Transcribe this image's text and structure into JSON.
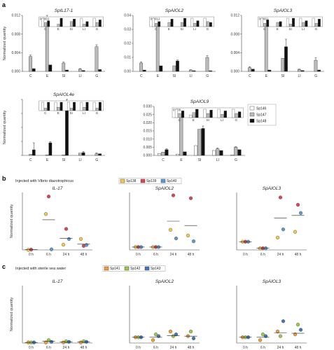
{
  "panel_labels": {
    "a": "a",
    "b": "b",
    "c": "c"
  },
  "legend_a": [
    {
      "name": "Sp146",
      "color": "#ffffff"
    },
    {
      "name": "Sp147",
      "color": "#bbbbbb"
    },
    {
      "name": "Sp148",
      "color": "#111111"
    }
  ],
  "header_b": "Injected with Vibrio diazotrophicus",
  "header_c": "Injected with sterile sea water",
  "legend_b": [
    {
      "name": "Sp138",
      "color": "#f2c94c"
    },
    {
      "name": "Sp139",
      "color": "#e0464f"
    },
    {
      "name": "Sp140",
      "color": "#5b9bd5"
    }
  ],
  "legend_c": [
    {
      "name": "Sp141",
      "color": "#f39c34"
    },
    {
      "name": "Sp142",
      "color": "#9cc84b"
    },
    {
      "name": "Sp143",
      "color": "#3e78c4"
    }
  ],
  "chart_data": [
    {
      "type": "bar",
      "title": "SpIL17-1",
      "ylabel": "Normalized quantity",
      "categories": [
        "C",
        "E",
        "SI",
        "LI",
        "G"
      ],
      "ylim": [
        0,
        0.012
      ],
      "yticks": [
        "0.000",
        "0.004",
        "0.008",
        "0.012"
      ],
      "series": [
        {
          "name": "Sp146",
          "values": [
            0,
            0,
            0,
            0,
            0
          ]
        },
        {
          "name": "Sp147",
          "values": [
            0.0032,
            0.0114,
            0.0018,
            0.0005,
            0.0053
          ]
        },
        {
          "name": "Sp148",
          "values": [
            0.0006,
            0.0014,
            0.0003,
            0.0002,
            0.0004
          ]
        }
      ],
      "errors": [
        0.0003,
        0.0006,
        0.0002,
        0.0001,
        0.0004
      ],
      "inset": {
        "ymax_label": "0.0001",
        "series": [
          [
            1,
            0,
            0,
            1,
            1
          ],
          [
            0.5,
            0.3,
            0.6,
            0.3,
            0.5
          ],
          [
            0.7,
            1,
            0.9,
            0.6,
            0.8
          ]
        ]
      }
    },
    {
      "type": "bar",
      "title": "SpAIOL2",
      "ylabel": "",
      "categories": [
        "C",
        "E",
        "SI",
        "LI",
        "G"
      ],
      "ylim": [
        0,
        0.04
      ],
      "yticks": [
        "0.00",
        "0.01",
        "0.02",
        "0.03",
        "0.04"
      ],
      "series": [
        {
          "name": "Sp146",
          "values": [
            0,
            0,
            0,
            0,
            0
          ]
        },
        {
          "name": "Sp147",
          "values": [
            0.006,
            0.033,
            0.004,
            0.001,
            0.01
          ]
        },
        {
          "name": "Sp148",
          "values": [
            0.001,
            0.004,
            0.0075,
            0.0005,
            0.0005
          ]
        }
      ],
      "errors": [
        0.0008,
        0.002,
        0.0006,
        0.0002,
        0.0012
      ],
      "inset": {
        "ymax_label": "0.0012",
        "series": [
          [
            1,
            0,
            0,
            1,
            1
          ],
          [
            0.4,
            0.5,
            0.5,
            0.4,
            0.6
          ],
          [
            0.6,
            0.9,
            1,
            0.7,
            0.5
          ]
        ]
      }
    },
    {
      "type": "bar",
      "title": "SpAIOL3",
      "ylabel": "",
      "categories": [
        "C",
        "E",
        "SI",
        "LI",
        "G"
      ],
      "ylim": [
        0,
        0.012
      ],
      "yticks": [
        "0.000",
        "0.004",
        "0.008",
        "0.012"
      ],
      "series": [
        {
          "name": "Sp146",
          "values": [
            0,
            0,
            0,
            0,
            0
          ]
        },
        {
          "name": "Sp147",
          "values": [
            0.0008,
            0.011,
            0.0028,
            0.0004,
            0.0024
          ]
        },
        {
          "name": "Sp148",
          "values": [
            0.0005,
            0.0003,
            0.0053,
            0.0002,
            0.0003
          ]
        }
      ],
      "errors": [
        0.0002,
        0.0006,
        0.0016,
        0.0001,
        0.0005
      ],
      "inset": {
        "ymax_label": "0.0001",
        "series": [
          [
            1,
            0,
            1,
            1,
            1
          ],
          [
            0.4,
            0.5,
            0.3,
            0.5,
            0.4
          ],
          [
            0.8,
            0.6,
            1,
            0.7,
            0.9
          ]
        ]
      }
    },
    {
      "type": "bar",
      "title": "SpAIOL4e",
      "ylabel": "Normalized quantity",
      "categories": [
        "C",
        "E",
        "SI",
        "LI",
        "G"
      ],
      "ylim": [
        0,
        0.2
      ],
      "yticks": [
        "",
        "",
        "",
        "",
        ""
      ],
      "series": [
        {
          "name": "Sp146",
          "values": [
            0,
            0,
            0,
            0,
            0
          ]
        },
        {
          "name": "Sp147",
          "values": [
            0.004,
            0.002,
            0.002,
            0.008,
            0.006
          ]
        },
        {
          "name": "Sp148",
          "values": [
            0.02,
            0.045,
            0.18,
            0.01,
            0.006
          ]
        }
      ],
      "errors": [
        0.025,
        0.004,
        0.02,
        0.004,
        0.003
      ],
      "inset": {
        "ymax_label": "",
        "series": [
          [
            1,
            1,
            1,
            1,
            1
          ],
          [
            0.3,
            0.4,
            0.3,
            0.4,
            0.3
          ],
          [
            1,
            1,
            1,
            1,
            1
          ]
        ]
      }
    },
    {
      "type": "bar",
      "title": "SpAIOL9",
      "ylabel": "",
      "categories": [
        "C",
        "E",
        "SI",
        "LI",
        "G"
      ],
      "ylim": [
        0,
        0.03
      ],
      "yticks": [
        "0.000",
        "0.005",
        "0.010",
        "0.015",
        "0.020",
        "0.025",
        "0.030"
      ],
      "series": [
        {
          "name": "Sp146",
          "values": [
            0.0012,
            0.0008,
            0.006,
            0.003,
            0.0003
          ]
        },
        {
          "name": "Sp147",
          "values": [
            0.002,
            0.026,
            0.016,
            0.004,
            0.005
          ]
        },
        {
          "name": "Sp148",
          "values": [
            0.0035,
            0.0022,
            0.0165,
            0.003,
            0.0035
          ]
        }
      ],
      "errors": [
        0.0006,
        0.002,
        0.0015,
        0.0006,
        0.0004
      ],
      "inset": {
        "ymax_label": "0.005",
        "series": [
          [
            1,
            0.3,
            1,
            1,
            1
          ],
          [
            0.5,
            0.6,
            0.5,
            0.4,
            0.5
          ],
          [
            0.8,
            1,
            0.9,
            0.8,
            0.7
          ]
        ]
      }
    },
    {
      "type": "scatter",
      "title": "IL-17",
      "ylabel": "Normalized quantity",
      "categories": [
        "0 h",
        "6 h",
        "24 h",
        "48 h"
      ],
      "ymax": 200,
      "points": [
        [
          [
            0,
            1
          ],
          [
            0,
            1
          ],
          [
            0,
            1
          ]
        ],
        [
          [
            125,
            186,
            2
          ],
          [
            2,
            1,
            1
          ],
          [
            2,
            1,
            1
          ]
        ],
        [
          [
            18,
            73,
            38
          ],
          [
            1,
            2,
            1
          ],
          [
            2,
            1,
            1
          ]
        ],
        [
          [
            38,
            14,
            17
          ],
          [
            1,
            2,
            1
          ],
          [
            2,
            1,
            1
          ]
        ]
      ],
      "means": [
        1,
        105,
        40,
        20
      ]
    },
    {
      "type": "scatter",
      "title": "SpAIOL2",
      "ylabel": "",
      "categories": [
        "0 h",
        "6 h",
        "24 h",
        "48 h"
      ],
      "ymax": 20,
      "points": [
        [
          [
            1,
            1,
            1
          ]
        ],
        [
          [
            1,
            1,
            1
          ]
        ],
        [
          [
            7,
            19,
            4
          ]
        ],
        [
          [
            5,
            18,
            3
          ]
        ]
      ],
      "means": [
        1,
        1,
        10,
        8.5
      ]
    },
    {
      "type": "scatter",
      "title": "SpAIOL3",
      "ylabel": "",
      "categories": [
        "0 h",
        "6 h",
        "24 h",
        "48 h"
      ],
      "ymax": 7,
      "points": [
        [
          [
            1,
            1,
            1
          ]
        ],
        [
          [
            0.2,
            0.2,
            0.2
          ]
        ],
        [
          [
            1.5,
            6.4,
            2.5
          ]
        ],
        [
          [
            2.2,
            5.5,
            4.5
          ]
        ]
      ],
      "means": [
        1,
        0.2,
        3.9,
        4.2
      ]
    },
    {
      "type": "scatter",
      "title": "IL-17",
      "ylabel": "Normalized quantity",
      "categories": [
        "0 h",
        "6 h",
        "24 h",
        "48 h"
      ],
      "ymax": 10,
      "points": [
        [
          [
            0.1,
            0.1,
            0.1
          ]
        ],
        [
          [
            0.1,
            0.5,
            0.2
          ]
        ],
        [
          [
            0.1,
            0.3,
            0.2
          ]
        ],
        [
          [
            0.1,
            0.3,
            0.2
          ]
        ]
      ],
      "means": [
        0.1,
        0.3,
        0.2,
        0.2
      ]
    },
    {
      "type": "scatter",
      "title": "SpAIOL2",
      "ylabel": "",
      "categories": [
        "0 h",
        "6 h",
        "24 h",
        "48 h"
      ],
      "ymax": 10,
      "points": [
        [
          [
            1,
            1,
            1
          ]
        ],
        [
          [
            0.5,
            1.5,
            1.2
          ]
        ],
        [
          [
            2,
            1.2,
            1.5
          ]
        ],
        [
          [
            1.2,
            2,
            0.8
          ]
        ]
      ],
      "means": [
        1,
        1,
        1.3,
        1.2
      ]
    },
    {
      "type": "scatter",
      "title": "SpAIOL3",
      "ylabel": "",
      "categories": [
        "0 h",
        "6 h",
        "24 h",
        "48 h"
      ],
      "ymax": 10,
      "points": [
        [
          [
            1,
            1,
            1
          ]
        ],
        [
          [
            0.5,
            1.5,
            1.2
          ]
        ],
        [
          [
            2,
            1.2,
            3.8
          ]
        ],
        [
          [
            1.5,
            3.2,
            2.3
          ]
        ]
      ],
      "means": [
        1,
        1,
        1.8,
        1.7
      ]
    }
  ]
}
